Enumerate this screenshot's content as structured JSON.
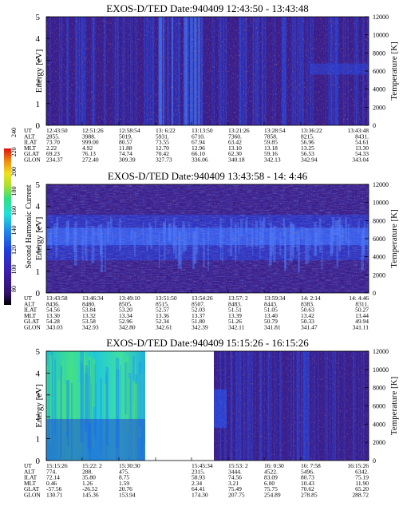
{
  "figure": {
    "colorbar": {
      "label": "Second Harmonic Current",
      "ticks": [
        "80",
        "100",
        "120",
        "140",
        "160",
        "180",
        "200",
        "220",
        "240"
      ]
    },
    "y_left_label": "Energy [eV]",
    "y_right_label": "Temperature [K]",
    "y_left_ticks": [
      "0",
      "1",
      "2",
      "3",
      "4",
      "5"
    ],
    "y_right_ticks": [
      "0",
      "2000",
      "4000",
      "6000",
      "8000",
      "10000",
      "12000"
    ]
  },
  "chart_data": [
    {
      "type": "heatmap",
      "title": "EXOS-D/TED   Date:940409   12:43:50 - 13:43:48",
      "ylabel": "Energy [eV]",
      "ylabel_right": "Temperature [K]",
      "ylim": [
        0,
        5
      ],
      "ylim_right": [
        0,
        12000
      ],
      "colormap_range": [
        80,
        240
      ],
      "ephemeris": {
        "UT": [
          "12:43:50",
          "12:51:26",
          "12:58:54",
          "13: 6:22",
          "13:13:50",
          "13:21:26",
          "13:28:54",
          "13:36:22",
          "13:43:48"
        ],
        "ALT": [
          "2855.",
          "3988.",
          "5019.",
          "5931.",
          "6710.",
          "7360.",
          "7858.",
          "8215.",
          "8431."
        ],
        "ILAT": [
          "73.70",
          "999.00",
          "80.57",
          "73.55",
          "67.94",
          "63.42",
          "59.85",
          "56.96",
          "54.61"
        ],
        "MLT": [
          "2.22",
          "4.92",
          "11.88",
          "12.70",
          "12.96",
          "13.10",
          "13.18",
          "13.25",
          "13.30"
        ],
        "GLAT": [
          "69.23",
          "76.13",
          "74.74",
          "70.42",
          "66.10",
          "62.30",
          "59.16",
          "56.53",
          "54.33"
        ],
        "GLON": [
          "234.37",
          "272.40",
          "309.39",
          "327.73",
          "336.06",
          "340.18",
          "342.13",
          "342.94",
          "343.04"
        ]
      }
    },
    {
      "type": "heatmap",
      "title": "EXOS-D/TED   Date:940409   13:43:58 - 14: 4:46",
      "ylabel": "Energy [eV]",
      "ylabel_right": "Temperature [K]",
      "ylim": [
        0,
        5
      ],
      "ylim_right": [
        0,
        12000
      ],
      "colormap_range": [
        80,
        240
      ],
      "ephemeris": {
        "UT": [
          "13:43:58",
          "13:46:34",
          "13:49:10",
          "13:51:50",
          "13:54:26",
          "13:57: 2",
          "13:59:34",
          "14: 2:14",
          "14: 4:46"
        ],
        "ALT": [
          "8436.",
          "8480.",
          "8505.",
          "8515.",
          "8507.",
          "8483.",
          "8443.",
          "8383.",
          "8311."
        ],
        "ILAT": [
          "54.56",
          "53.84",
          "53.20",
          "52.57",
          "52.03",
          "51.51",
          "51.05",
          "50.63",
          "50.27"
        ],
        "MLT": [
          "13.30",
          "13.32",
          "13.34",
          "13.36",
          "13.37",
          "13.39",
          "13.40",
          "13.42",
          "13.44"
        ],
        "GLAT": [
          "54.28",
          "53.58",
          "52.96",
          "52.34",
          "51.80",
          "51.26",
          "50.79",
          "50.33",
          "49.94"
        ],
        "GLON": [
          "343.03",
          "342.93",
          "342.80",
          "342.61",
          "342.39",
          "342.11",
          "341.81",
          "341.47",
          "341.11"
        ]
      }
    },
    {
      "type": "heatmap",
      "title": "EXOS-D/TED   Date:940409   15:15:26 - 16:15:26",
      "ylabel": "Energy [eV]",
      "ylabel_right": "Temperature [K]",
      "ylim": [
        0,
        5
      ],
      "ylim_right": [
        0,
        12000
      ],
      "colormap_range": [
        80,
        240
      ],
      "ephemeris": {
        "UT": [
          "15:15:26",
          "15:22: 2",
          "15:30:30",
          "",
          "15:45:34",
          "15:53: 2",
          "16: 0:30",
          "16: 7:58",
          "16:15:26"
        ],
        "ALT": [
          "774.",
          "288.",
          "475.",
          "",
          "2315.",
          "3444.",
          "4522.",
          "5496.",
          "6342."
        ],
        "ILAT": [
          "72.14",
          "35.80",
          "8.75",
          "",
          "58.93",
          "74.56",
          "83.09",
          "80.73",
          "75.19"
        ],
        "MLT": [
          "0.46",
          "1.26",
          "1.59",
          "",
          "2.34",
          "3.21",
          "6.00",
          "10.43",
          "11.90"
        ],
        "GLAT": [
          "-57.56",
          "-26.52",
          "20.76",
          "",
          "64.41",
          "75.49",
          "75.75",
          "70.62",
          "65.20"
        ],
        "GLON": [
          "130.71",
          "145.36",
          "153.94",
          "",
          "174.30",
          "207.75",
          "254.89",
          "278.85",
          "288.72"
        ]
      }
    }
  ],
  "colors": {
    "background": "#3a1f8c",
    "band_blue": "#2a45d8",
    "bright_blue": "#3a6cf0",
    "speck": "#c04020"
  }
}
